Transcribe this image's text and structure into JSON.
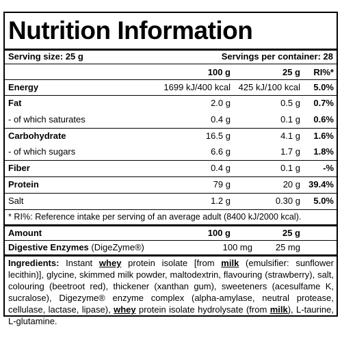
{
  "title": "Nutrition Information",
  "serving": {
    "size": "Serving size: 25 g",
    "per_container": "Servings per container: 28"
  },
  "header": {
    "col1": "100 g",
    "col2": "25 g",
    "col3": "RI%*"
  },
  "rows": [
    {
      "name": "Energy",
      "v100": "1699 kJ/400 kcal",
      "v25": "425 kJ/100 kcal",
      "ri": "5.0%"
    },
    {
      "name": "Fat",
      "v100": "2.0 g",
      "v25": "0.5 g",
      "ri": "0.7%"
    },
    {
      "name": "- of which saturates",
      "v100": "0.4 g",
      "v25": "0.1 g",
      "ri": "0.6%"
    },
    {
      "name": "Carbohydrate",
      "v100": "16.5 g",
      "v25": "4.1 g",
      "ri": "1.6%"
    },
    {
      "name": "- of which sugars",
      "v100": "6.6 g",
      "v25": "1.7 g",
      "ri": "1.8%"
    },
    {
      "name": "Fiber",
      "v100": "0.4 g",
      "v25": "0.1 g",
      "ri": "-%"
    },
    {
      "name": "Protein",
      "v100": "79 g",
      "v25": "20 g",
      "ri": "39.4%"
    },
    {
      "name": "Salt",
      "v100": "1.2 g",
      "v25": "0.30 g",
      "ri": "5.0%"
    }
  ],
  "ri_note": "* RI%: Reference intake per serving of an average adult (8400 kJ/2000 kcal).",
  "amount": {
    "label": "Amount",
    "col1": "100 g",
    "col2": "25 g"
  },
  "enzymes": {
    "name": "Digestive Enzymes",
    "sub": "(DigeZyme®)",
    "v100": "100 mg",
    "v25": "25 mg"
  },
  "ingredients": {
    "label": "Ingredients:",
    "p1": "Instant",
    "whey1": "whey",
    "p2": "protein isolate [from",
    "milk1": "milk",
    "p3": "(emulsifier: sunflower lecithin)], glycine, skimmed milk powder, maltodextrin, flavouring (strawberry), salt, colouring (beetroot red), thickener (xanthan gum), sweeteners (acesulfame K, sucralose), Digezyme® enzyme complex (alpha-amylase, neutral protease, cellulase, lactase, lipase),",
    "whey2": "whey",
    "p4": "protein isolate hydrolysate (from",
    "milk2": "milk",
    "p5": "), L-taurine, L-glutamine."
  }
}
